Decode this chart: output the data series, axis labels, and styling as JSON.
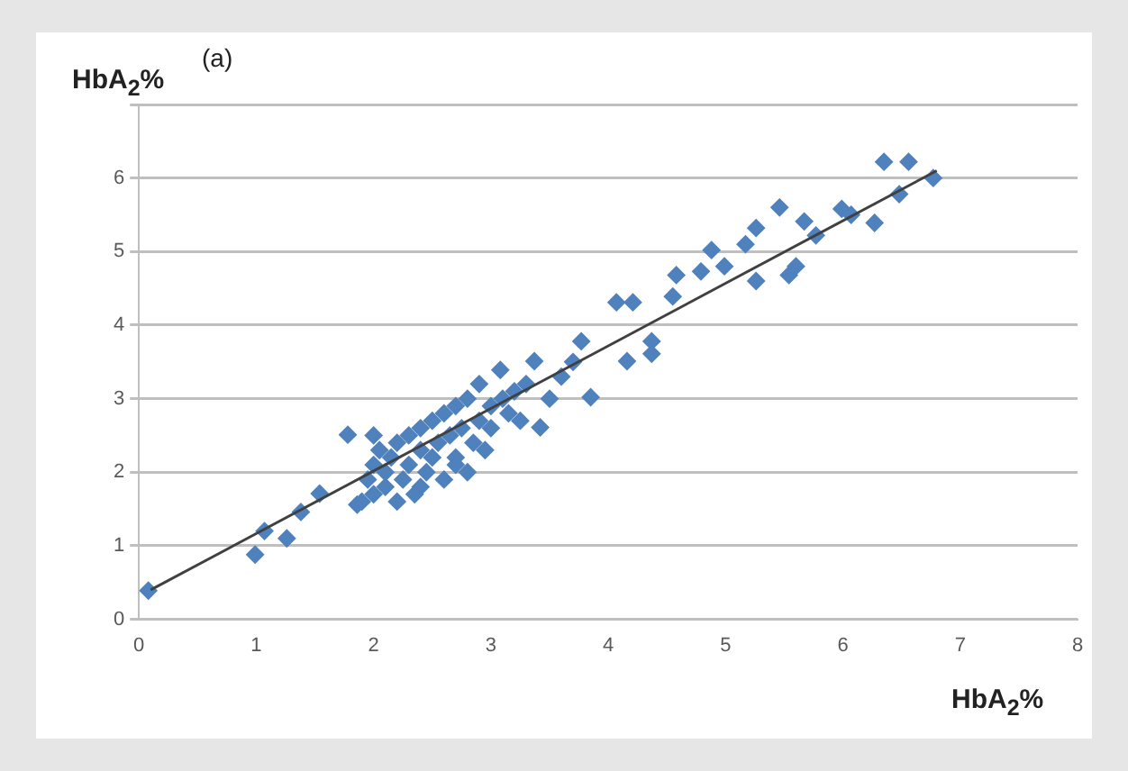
{
  "chart_data": {
    "type": "scatter",
    "ylabel": "HbA$_{2}$%",
    "xlabel": "HbA$_{2}$%",
    "annotations": [
      "(a)"
    ],
    "xlim": [
      0,
      8
    ],
    "xticks": [
      0,
      1,
      2,
      3,
      4,
      5,
      6,
      7,
      8
    ],
    "ylim": [
      0,
      7
    ],
    "yticks": [
      {
        "value": 0,
        "label": "0"
      },
      {
        "value": 1,
        "label": "1"
      },
      {
        "value": 2,
        "label": "2"
      },
      {
        "value": 3,
        "label": "3"
      },
      {
        "value": 4,
        "label": "4"
      },
      {
        "value": 5,
        "label": "5"
      },
      {
        "value": 6,
        "label": "6"
      },
      {
        "value": 7,
        "label": null
      }
    ],
    "grid": "y",
    "marker": "diamond",
    "legend": false,
    "series": [
      {
        "color": "#4f81bd",
        "x": [
          0.08,
          0.99,
          1.07,
          1.26,
          1.38,
          1.54,
          1.78,
          1.86,
          1.9,
          1.95,
          2.0,
          2.0,
          2.05,
          2.1,
          2.1,
          2.15,
          2.2,
          2.2,
          2.25,
          2.3,
          2.3,
          2.35,
          2.4,
          2.4,
          2.45,
          2.5,
          2.5,
          2.55,
          2.6,
          2.6,
          2.65,
          2.7,
          2.7,
          2.75,
          2.8,
          2.8,
          2.85,
          2.9,
          2.9,
          2.95,
          3.0,
          3.0,
          3.1,
          3.15,
          3.2,
          3.25,
          2.0,
          2.4,
          2.7,
          3.3,
          3.08,
          3.37,
          3.42,
          3.5,
          3.6,
          3.7,
          3.77,
          3.85,
          4.07,
          4.16,
          4.21,
          4.37,
          4.37,
          4.55,
          4.58,
          4.79,
          4.88,
          4.99,
          5.17,
          5.26,
          5.26,
          5.46,
          5.54,
          5.6,
          5.67,
          5.77,
          5.99,
          6.07,
          6.27,
          6.35,
          6.48,
          6.56,
          6.77
        ],
        "values": [
          0.39,
          0.88,
          1.2,
          1.1,
          1.46,
          1.71,
          2.51,
          1.56,
          1.6,
          1.9,
          2.1,
          1.7,
          2.3,
          1.8,
          2.0,
          2.2,
          2.4,
          1.6,
          1.9,
          2.1,
          2.5,
          1.7,
          2.3,
          2.6,
          2.0,
          2.2,
          2.7,
          2.4,
          1.9,
          2.8,
          2.5,
          2.2,
          2.9,
          2.6,
          2.0,
          3.0,
          2.4,
          2.7,
          3.2,
          2.3,
          2.9,
          2.6,
          3.0,
          2.8,
          3.1,
          2.7,
          2.5,
          1.8,
          2.1,
          3.2,
          3.39,
          3.51,
          2.61,
          3.0,
          3.3,
          3.5,
          3.78,
          3.02,
          4.31,
          3.51,
          4.31,
          3.78,
          3.61,
          4.39,
          4.68,
          4.73,
          5.02,
          4.8,
          5.1,
          5.32,
          4.6,
          5.6,
          4.68,
          4.8,
          5.41,
          5.22,
          5.58,
          5.5,
          5.39,
          6.22,
          5.78,
          6.22,
          6.0
        ]
      },
      {
        "type": "line",
        "marker": "none",
        "color": "#404040",
        "x": [
          0.1,
          6.8
        ],
        "values": [
          0.4,
          6.1
        ]
      }
    ]
  }
}
